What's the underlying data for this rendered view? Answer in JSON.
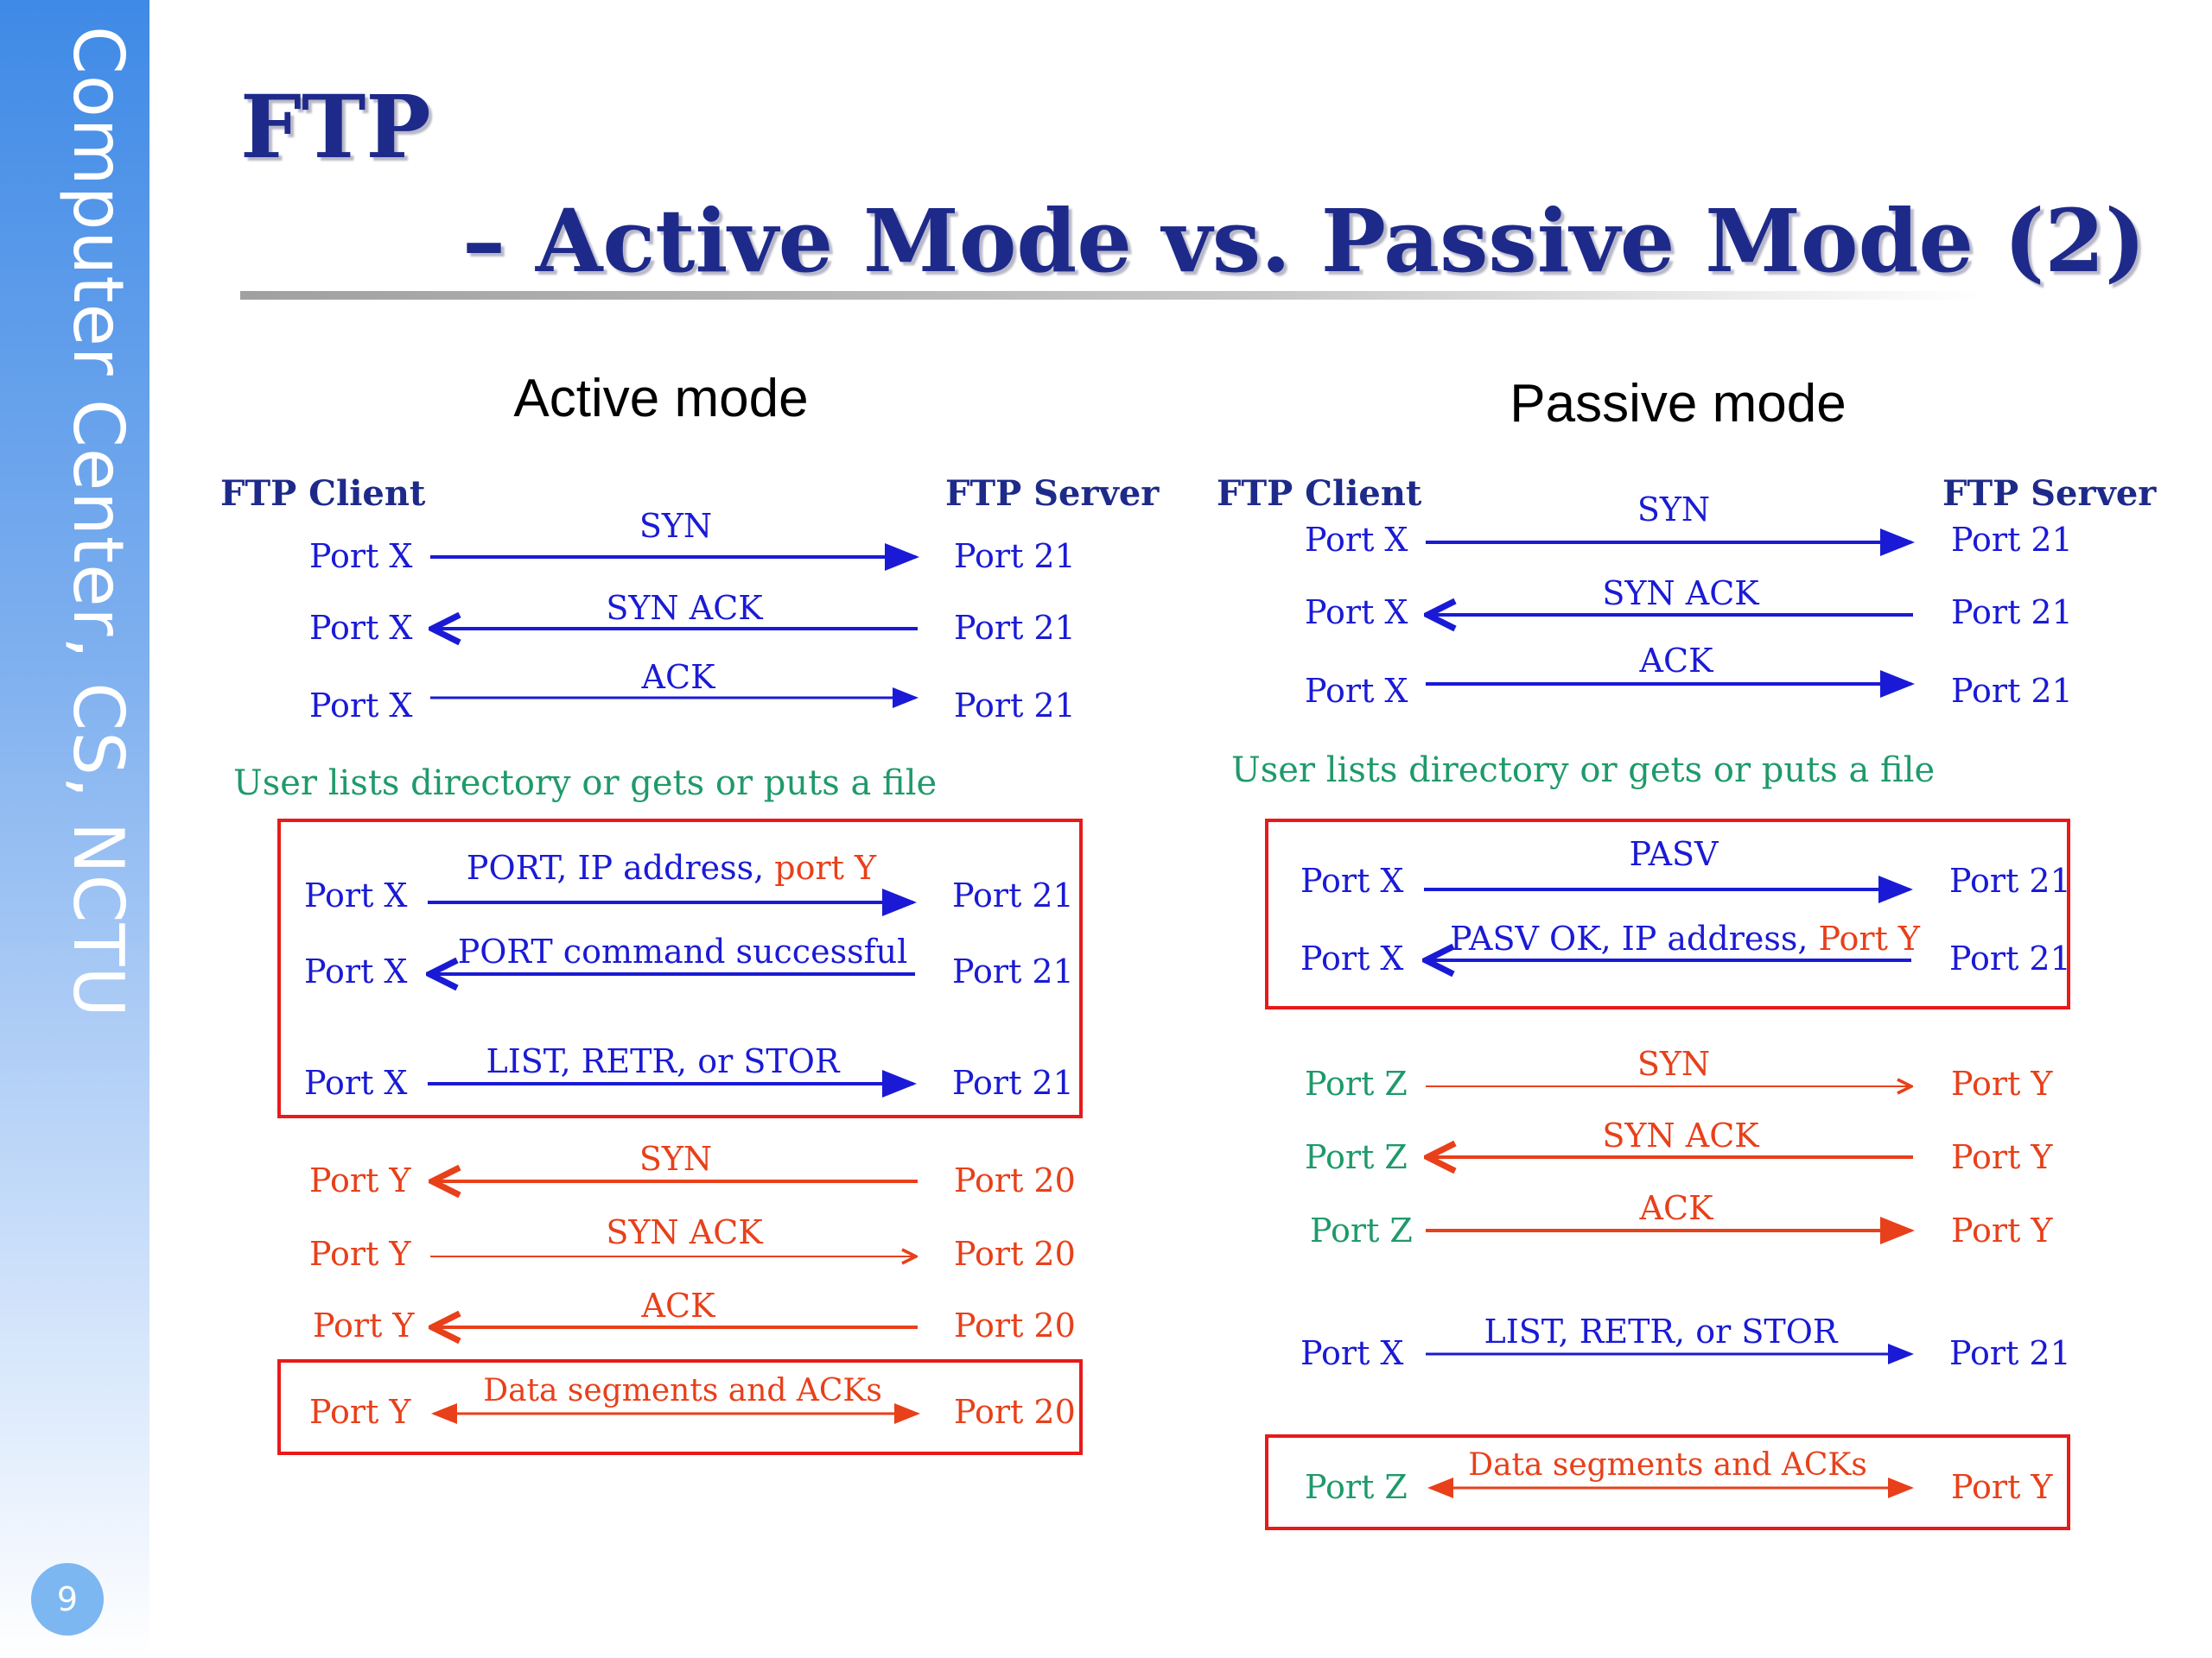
{
  "sidebar": {
    "text": "Computer Center, CS, NCTU",
    "page_number": "9"
  },
  "title": {
    "line1": "FTP",
    "line2": "– Active Mode vs. Passive Mode (2)"
  },
  "colors": {
    "blue": "#1a1ad6",
    "red": "#e8401a",
    "green": "#1f9a6a",
    "box": "#e81a1a",
    "navy": "#1e2a8a"
  },
  "active": {
    "heading": "Active mode",
    "client_label": "FTP Client",
    "server_label": "FTP Server",
    "note": "User lists directory or gets or puts a file",
    "messages": [
      {
        "left": "Port X",
        "label": "SYN",
        "right": "Port 21"
      },
      {
        "left": "Port X",
        "label": "SYN ACK",
        "right": "Port 21"
      },
      {
        "left": "Port X",
        "label": "ACK",
        "right": "Port 21"
      },
      {
        "left": "Port X",
        "label": "PORT, IP address, ",
        "label_highlight": "port Y",
        "right": "Port 21"
      },
      {
        "left": "Port X",
        "label": "PORT command successful",
        "right": "Port 21"
      },
      {
        "left": "Port X",
        "label": "LIST, RETR, or STOR",
        "right": "Port 21"
      },
      {
        "left": "Port Y",
        "label": "SYN",
        "right": "Port 20"
      },
      {
        "left": "Port Y",
        "label": "SYN ACK",
        "right": "Port 20"
      },
      {
        "left": "Port Y",
        "label": "ACK",
        "right": "Port 20"
      },
      {
        "left": "Port Y",
        "label": "Data segments and ACKs",
        "right": "Port 20"
      }
    ]
  },
  "passive": {
    "heading": "Passive mode",
    "client_label": "FTP Client",
    "server_label": "FTP Server",
    "note": "User lists directory or gets or puts a file",
    "messages": [
      {
        "left": "Port X",
        "label": "SYN",
        "right": "Port 21"
      },
      {
        "left": "Port X",
        "label": "SYN ACK",
        "right": "Port 21"
      },
      {
        "left": "Port X",
        "label": "ACK",
        "right": "Port 21"
      },
      {
        "left": "Port X",
        "label": "PASV",
        "right": "Port 21"
      },
      {
        "left": "Port X",
        "label": "PASV OK, IP address, ",
        "label_highlight": "Port Y",
        "right": "Port 21"
      },
      {
        "left": "Port Z",
        "label": "SYN",
        "right": "Port Y"
      },
      {
        "left": "Port Z",
        "label": "SYN ACK",
        "right": "Port Y"
      },
      {
        "left": "Port Z",
        "label": "ACK",
        "right": "Port Y"
      },
      {
        "left": "Port X",
        "label": "LIST, RETR, or STOR",
        "right": "Port 21"
      },
      {
        "left": "Port Z",
        "label": "Data segments and ACKs",
        "right": "Port Y"
      }
    ]
  }
}
